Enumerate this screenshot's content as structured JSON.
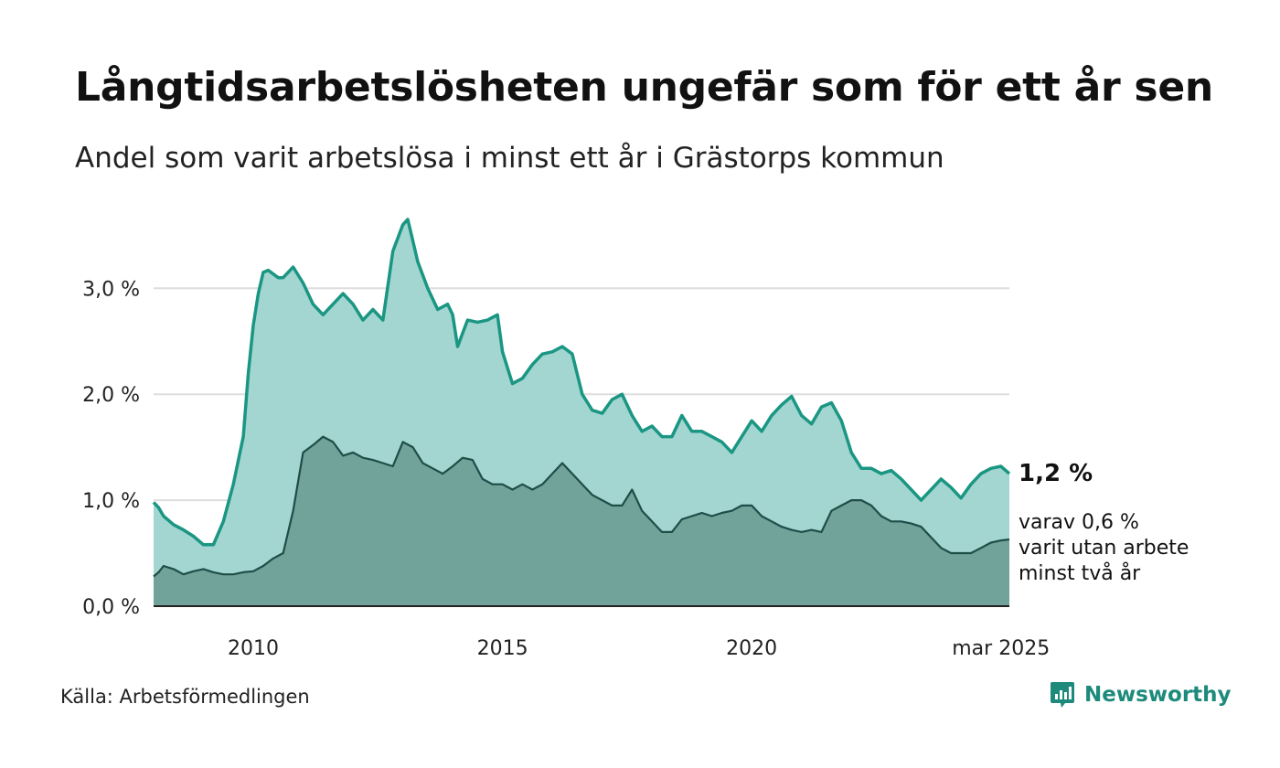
{
  "title": "Långtidsarbetslösheten ungefär som för ett år sen",
  "subtitle": "Andel som varit arbetslösa i minst ett år i Grästorps kommun",
  "source": "Källa: Arbetsförmedlingen",
  "brand": "Newsworthy",
  "annotation": {
    "value": "1,2 %",
    "line1": "varav 0,6 %",
    "line2": "varit utan arbete",
    "line3": "minst två år"
  },
  "colors": {
    "series1_line": "#1a9683",
    "series1_fill": "#a3d6d1",
    "series2_line": "#1f4d47",
    "series2_fill": "#72a39b",
    "grid": "#dddddd",
    "brand": "#1d8a7c"
  },
  "chart_data": {
    "type": "area",
    "title": "Långtidsarbetslösheten ungefär som för ett år sen",
    "subtitle": "Andel som varit arbetslösa i minst ett år i Grästorps kommun",
    "xlabel": "",
    "ylabel": "",
    "x_range": [
      2008.0,
      2025.17
    ],
    "ylim": [
      0,
      3.8
    ],
    "yticks": [
      0,
      1,
      2,
      3
    ],
    "ytick_labels": [
      "0,0 %",
      "1,0 %",
      "2,0 %",
      "3,0 %"
    ],
    "xticks": [
      2010,
      2015,
      2020,
      2025
    ],
    "xtick_labels": [
      "2010",
      "2015",
      "2020",
      "mar 2025"
    ],
    "grid": true,
    "legend": "none",
    "series": [
      {
        "name": "",
        "x": [
          2008.0,
          2008.1,
          2008.2,
          2008.4,
          2008.6,
          2008.8,
          2009.0,
          2009.2,
          2009.4,
          2009.6,
          2009.8,
          2009.9,
          2010.0,
          2010.1,
          2010.2,
          2010.3,
          2010.5,
          2010.6,
          2010.8,
          2011.0,
          2011.2,
          2011.4,
          2011.6,
          2011.8,
          2012.0,
          2012.2,
          2012.4,
          2012.6,
          2012.8,
          2013.0,
          2013.1,
          2013.2,
          2013.3,
          2013.5,
          2013.7,
          2013.9,
          2014.0,
          2014.1,
          2014.3,
          2014.5,
          2014.7,
          2014.9,
          2015.0,
          2015.2,
          2015.4,
          2015.6,
          2015.8,
          2016.0,
          2016.2,
          2016.4,
          2016.6,
          2016.8,
          2017.0,
          2017.2,
          2017.4,
          2017.6,
          2017.8,
          2018.0,
          2018.2,
          2018.4,
          2018.6,
          2018.8,
          2019.0,
          2019.2,
          2019.4,
          2019.6,
          2019.8,
          2020.0,
          2020.2,
          2020.4,
          2020.6,
          2020.8,
          2021.0,
          2021.2,
          2021.4,
          2021.6,
          2021.8,
          2022.0,
          2022.2,
          2022.4,
          2022.6,
          2022.8,
          2023.0,
          2023.2,
          2023.4,
          2023.6,
          2023.8,
          2024.0,
          2024.2,
          2024.4,
          2024.6,
          2024.8,
          2025.0,
          2025.17
        ],
        "values": [
          0.98,
          0.93,
          0.85,
          0.77,
          0.72,
          0.66,
          0.58,
          0.58,
          0.8,
          1.15,
          1.6,
          2.2,
          2.65,
          2.95,
          3.15,
          3.17,
          3.1,
          3.1,
          3.2,
          3.05,
          2.85,
          2.75,
          2.85,
          2.95,
          2.85,
          2.7,
          2.8,
          2.7,
          3.35,
          3.6,
          3.65,
          3.45,
          3.25,
          3.0,
          2.8,
          2.85,
          2.75,
          2.45,
          2.7,
          2.68,
          2.7,
          2.75,
          2.4,
          2.1,
          2.15,
          2.28,
          2.38,
          2.4,
          2.45,
          2.38,
          2.0,
          1.85,
          1.82,
          1.95,
          2.0,
          1.8,
          1.65,
          1.7,
          1.6,
          1.6,
          1.8,
          1.65,
          1.65,
          1.6,
          1.55,
          1.45,
          1.6,
          1.75,
          1.65,
          1.8,
          1.9,
          1.98,
          1.8,
          1.72,
          1.88,
          1.92,
          1.75,
          1.45,
          1.3,
          1.3,
          1.25,
          1.28,
          1.2,
          1.1,
          1.0,
          1.1,
          1.2,
          1.12,
          1.02,
          1.15,
          1.25,
          1.3,
          1.32,
          1.25
        ]
      },
      {
        "name": "",
        "x": [
          2008.0,
          2008.1,
          2008.2,
          2008.4,
          2008.6,
          2008.8,
          2009.0,
          2009.2,
          2009.4,
          2009.6,
          2009.8,
          2010.0,
          2010.2,
          2010.4,
          2010.6,
          2010.8,
          2011.0,
          2011.2,
          2011.4,
          2011.6,
          2011.8,
          2012.0,
          2012.2,
          2012.4,
          2012.6,
          2012.8,
          2013.0,
          2013.2,
          2013.4,
          2013.6,
          2013.8,
          2014.0,
          2014.2,
          2014.4,
          2014.6,
          2014.8,
          2015.0,
          2015.2,
          2015.4,
          2015.6,
          2015.8,
          2016.0,
          2016.2,
          2016.4,
          2016.6,
          2016.8,
          2017.0,
          2017.2,
          2017.4,
          2017.6,
          2017.8,
          2018.0,
          2018.2,
          2018.4,
          2018.6,
          2018.8,
          2019.0,
          2019.2,
          2019.4,
          2019.6,
          2019.8,
          2020.0,
          2020.2,
          2020.4,
          2020.6,
          2020.8,
          2021.0,
          2021.2,
          2021.4,
          2021.6,
          2021.8,
          2022.0,
          2022.2,
          2022.4,
          2022.6,
          2022.8,
          2023.0,
          2023.2,
          2023.4,
          2023.6,
          2023.8,
          2024.0,
          2024.2,
          2024.4,
          2024.6,
          2024.8,
          2025.0,
          2025.17
        ],
        "values": [
          0.28,
          0.32,
          0.38,
          0.35,
          0.3,
          0.33,
          0.35,
          0.32,
          0.3,
          0.3,
          0.32,
          0.33,
          0.38,
          0.45,
          0.5,
          0.9,
          1.45,
          1.52,
          1.6,
          1.55,
          1.42,
          1.45,
          1.4,
          1.38,
          1.35,
          1.32,
          1.55,
          1.5,
          1.35,
          1.3,
          1.25,
          1.32,
          1.4,
          1.38,
          1.2,
          1.15,
          1.15,
          1.1,
          1.15,
          1.1,
          1.15,
          1.25,
          1.35,
          1.25,
          1.15,
          1.05,
          1.0,
          0.95,
          0.95,
          1.1,
          0.9,
          0.8,
          0.7,
          0.7,
          0.82,
          0.85,
          0.88,
          0.85,
          0.88,
          0.9,
          0.95,
          0.95,
          0.85,
          0.8,
          0.75,
          0.72,
          0.7,
          0.72,
          0.7,
          0.9,
          0.95,
          1.0,
          1.0,
          0.95,
          0.85,
          0.8,
          0.8,
          0.78,
          0.75,
          0.65,
          0.55,
          0.5,
          0.5,
          0.5,
          0.55,
          0.6,
          0.62,
          0.63
        ]
      }
    ],
    "annotations": [
      "1,2 %",
      "varav 0,6 %",
      "varit utan arbete",
      "minst två år"
    ]
  }
}
